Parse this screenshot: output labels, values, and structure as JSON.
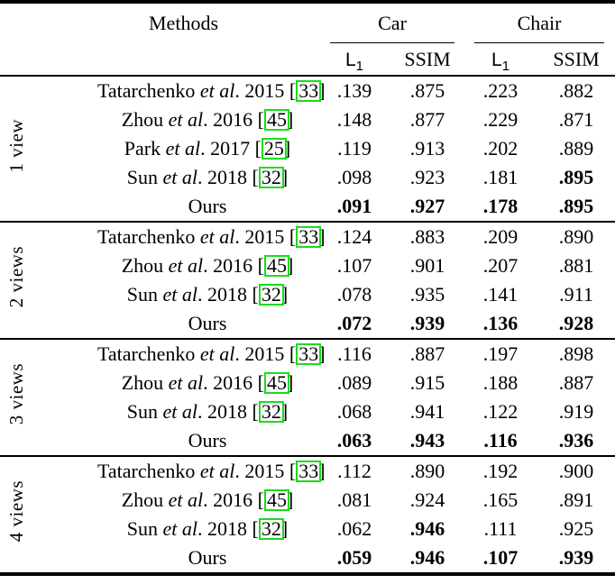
{
  "colors": {
    "cite_box_border": "#18dd18",
    "rule": "#000000",
    "background": "#ffffff"
  },
  "header": {
    "methods": "Methods",
    "groups": [
      {
        "label": "Car"
      },
      {
        "label": "Chair"
      }
    ],
    "metrics": {
      "l1_base": "L",
      "l1_sub": "1",
      "ssim": "SSIM"
    }
  },
  "sections": [
    {
      "view_label": "1 view",
      "rows": [
        {
          "name": "Tatarchenko ",
          "etal": "et al",
          "after": ". 2015 ",
          "lb": "[",
          "cite": "33",
          "rb": "]",
          "values": [
            ".139",
            ".875",
            ".223",
            ".882"
          ]
        },
        {
          "name": "Zhou ",
          "etal": "et al",
          "after": ". 2016 ",
          "lb": "[",
          "cite": "45",
          "rb": "]",
          "values": [
            ".148",
            ".877",
            ".229",
            ".871"
          ]
        },
        {
          "name": "Park ",
          "etal": "et al",
          "after": ". 2017 ",
          "lb": "[",
          "cite": "25",
          "rb": "]",
          "values": [
            ".119",
            ".913",
            ".202",
            ".889"
          ]
        },
        {
          "name": "Sun ",
          "etal": "et al",
          "after": ". 2018 ",
          "lb": "[",
          "cite": "32",
          "rb": "]",
          "values": [
            ".098",
            ".923",
            ".181",
            ".895"
          ]
        },
        {
          "name": "Ours",
          "etal": "",
          "after": "",
          "lb": "",
          "cite": "",
          "rb": "",
          "values": [
            ".091",
            ".927",
            ".178",
            ".895"
          ]
        }
      ]
    },
    {
      "view_label": "2 views",
      "rows": [
        {
          "name": "Tatarchenko ",
          "etal": "et al",
          "after": ". 2015 ",
          "lb": "[",
          "cite": "33",
          "rb": "]",
          "values": [
            ".124",
            ".883",
            ".209",
            ".890"
          ]
        },
        {
          "name": "Zhou ",
          "etal": "et al",
          "after": ". 2016 ",
          "lb": "[",
          "cite": "45",
          "rb": "]",
          "values": [
            ".107",
            ".901",
            ".207",
            ".881"
          ]
        },
        {
          "name": "Sun ",
          "etal": "et al",
          "after": ". 2018 ",
          "lb": "[",
          "cite": "32",
          "rb": "]",
          "values": [
            ".078",
            ".935",
            ".141",
            ".911"
          ]
        },
        {
          "name": "Ours",
          "etal": "",
          "after": "",
          "lb": "",
          "cite": "",
          "rb": "",
          "values": [
            ".072",
            ".939",
            ".136",
            ".928"
          ]
        }
      ]
    },
    {
      "view_label": "3 views",
      "rows": [
        {
          "name": "Tatarchenko ",
          "etal": "et al",
          "after": ". 2015 ",
          "lb": "[",
          "cite": "33",
          "rb": "]",
          "values": [
            ".116",
            ".887",
            ".197",
            ".898"
          ]
        },
        {
          "name": "Zhou ",
          "etal": "et al",
          "after": ". 2016 ",
          "lb": "[",
          "cite": "45",
          "rb": "]",
          "values": [
            ".089",
            ".915",
            ".188",
            ".887"
          ]
        },
        {
          "name": "Sun ",
          "etal": "et al",
          "after": ". 2018 ",
          "lb": "[",
          "cite": "32",
          "rb": "]",
          "values": [
            ".068",
            ".941",
            ".122",
            ".919"
          ]
        },
        {
          "name": "Ours",
          "etal": "",
          "after": "",
          "lb": "",
          "cite": "",
          "rb": "",
          "values": [
            ".063",
            ".943",
            ".116",
            ".936"
          ]
        }
      ]
    },
    {
      "view_label": "4 views",
      "rows": [
        {
          "name": "Tatarchenko ",
          "etal": "et al",
          "after": ". 2015 ",
          "lb": "[",
          "cite": "33",
          "rb": "]",
          "values": [
            ".112",
            ".890",
            ".192",
            ".900"
          ]
        },
        {
          "name": "Zhou ",
          "etal": "et al",
          "after": ". 2016 ",
          "lb": "[",
          "cite": "45",
          "rb": "]",
          "values": [
            ".081",
            ".924",
            ".165",
            ".891"
          ]
        },
        {
          "name": "Sun ",
          "etal": "et al",
          "after": ". 2018 ",
          "lb": "[",
          "cite": "32",
          "rb": "]",
          "values": [
            ".062",
            ".946",
            ".111",
            ".925"
          ]
        },
        {
          "name": "Ours",
          "etal": "",
          "after": "",
          "lb": "",
          "cite": "",
          "rb": "",
          "values": [
            ".059",
            ".946",
            ".107",
            ".939"
          ]
        }
      ]
    }
  ]
}
